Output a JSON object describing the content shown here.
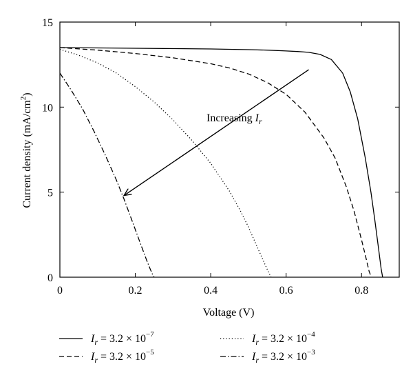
{
  "chart_data": {
    "type": "line",
    "xlabel": "Voltage (V)",
    "ylabel": "Current density (mA/cm²)",
    "ylabel_main": "Current density (mA/cm",
    "ylabel_sup": "2",
    "ylabel_tail": ")",
    "xlim": [
      0,
      0.9
    ],
    "ylim": [
      0,
      15
    ],
    "xticks": [
      0,
      0.2,
      0.4,
      0.6,
      0.8
    ],
    "xtick_labels": [
      "0",
      "0.2",
      "0.4",
      "0.6",
      "0.8"
    ],
    "yticks": [
      0,
      5,
      10,
      15
    ],
    "ytick_labels": [
      "0",
      "5",
      "10",
      "15"
    ],
    "grid": false,
    "legend_position": "bottom",
    "annotation": {
      "text_prefix": "Increasing ",
      "symbol": "I",
      "subscript": "r",
      "arrow_from": [
        0.66,
        12.2
      ],
      "arrow_to": [
        0.17,
        4.8
      ]
    },
    "series": [
      {
        "label_symbol": "I",
        "label_sub": "r",
        "label_eq": " = 3.2 × 10",
        "label_exp": "−7",
        "style": "solid",
        "x": [
          0,
          0.1,
          0.2,
          0.3,
          0.4,
          0.5,
          0.55,
          0.6,
          0.63,
          0.66,
          0.69,
          0.72,
          0.75,
          0.77,
          0.79,
          0.81,
          0.825,
          0.835,
          0.845,
          0.852,
          0.856
        ],
        "y": [
          13.5,
          13.48,
          13.46,
          13.44,
          13.42,
          13.38,
          13.35,
          13.3,
          13.27,
          13.22,
          13.1,
          12.8,
          12.0,
          10.9,
          9.3,
          7.0,
          5.0,
          3.4,
          1.7,
          0.5,
          0
        ]
      },
      {
        "label_symbol": "I",
        "label_sub": "r",
        "label_eq": " = 3.2 × 10",
        "label_exp": "−5",
        "style": "dashed",
        "x": [
          0,
          0.1,
          0.2,
          0.3,
          0.4,
          0.45,
          0.5,
          0.55,
          0.6,
          0.65,
          0.7,
          0.73,
          0.76,
          0.78,
          0.8,
          0.81,
          0.82,
          0.826
        ],
        "y": [
          13.5,
          13.35,
          13.15,
          12.9,
          12.55,
          12.3,
          11.95,
          11.45,
          10.75,
          9.7,
          8.2,
          7.0,
          5.3,
          3.9,
          2.2,
          1.3,
          0.35,
          0
        ]
      },
      {
        "label_symbol": "I",
        "label_sub": "r",
        "label_eq": " = 3.2 × 10",
        "label_exp": "−4",
        "style": "dotted",
        "x": [
          0,
          0.05,
          0.1,
          0.15,
          0.2,
          0.25,
          0.3,
          0.35,
          0.4,
          0.45,
          0.48,
          0.5,
          0.52,
          0.54,
          0.55,
          0.56
        ],
        "y": [
          13.4,
          13.05,
          12.6,
          12.0,
          11.2,
          10.3,
          9.25,
          8.05,
          6.7,
          5.05,
          3.85,
          2.95,
          1.95,
          0.95,
          0.45,
          0
        ]
      },
      {
        "label_symbol": "I",
        "label_sub": "r",
        "label_eq": " = 3.2 × 10",
        "label_exp": "−3",
        "style": "dashdot",
        "x": [
          0,
          0.03,
          0.06,
          0.09,
          0.12,
          0.15,
          0.17,
          0.19,
          0.21,
          0.22,
          0.23,
          0.24,
          0.245,
          0.25
        ],
        "y": [
          12.0,
          11.0,
          9.9,
          8.6,
          7.2,
          5.7,
          4.6,
          3.4,
          2.2,
          1.6,
          1.0,
          0.45,
          0.2,
          0
        ]
      }
    ]
  }
}
